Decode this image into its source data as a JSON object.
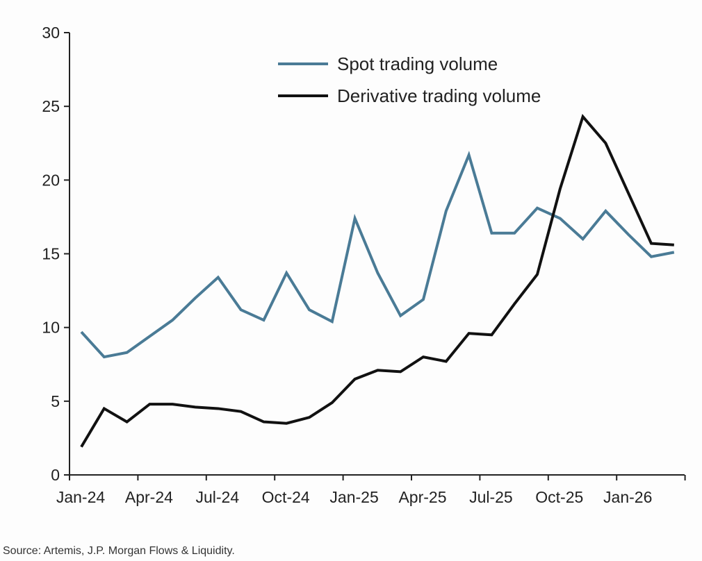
{
  "chart_data": {
    "type": "line",
    "title": "",
    "xlabel": "",
    "ylabel": "",
    "ylim": [
      0,
      30
    ],
    "yticks": [
      0,
      5,
      10,
      15,
      20,
      25,
      30
    ],
    "xtick_labels": [
      "Jan-24",
      "Apr-24",
      "Jul-24",
      "Oct-24",
      "Jan-25",
      "Apr-25",
      "Jul-25",
      "Oct-25",
      "Jan-26"
    ],
    "grid": false,
    "legend_position": "top-center",
    "x": [
      "Jan-24",
      "Feb-24",
      "Mar-24",
      "Apr-24",
      "May-24",
      "Jun-24",
      "Jul-24",
      "Aug-24",
      "Sep-24",
      "Oct-24",
      "Nov-24",
      "Dec-24",
      "Jan-25",
      "Feb-25",
      "Mar-25",
      "Apr-25",
      "May-25",
      "Jun-25",
      "Jul-25",
      "Aug-25",
      "Sep-25",
      "Oct-25",
      "Nov-25",
      "Dec-25",
      "Jan-26",
      "Feb-26",
      "Mar-26"
    ],
    "series": [
      {
        "name": "Spot trading volume",
        "color": "#4a7b96",
        "values": [
          9.7,
          8.0,
          8.3,
          9.4,
          10.5,
          12.0,
          13.4,
          11.2,
          10.5,
          13.7,
          11.2,
          10.4,
          17.4,
          13.7,
          10.8,
          11.9,
          17.9,
          21.7,
          16.4,
          16.4,
          18.1,
          17.4,
          16.0,
          17.9,
          16.3,
          14.8,
          15.1
        ]
      },
      {
        "name": "Derivative trading volume",
        "color": "#111111",
        "values": [
          1.9,
          4.5,
          3.6,
          4.8,
          4.8,
          4.6,
          4.5,
          4.3,
          3.6,
          3.5,
          3.9,
          4.9,
          6.5,
          7.1,
          7.0,
          8.0,
          7.7,
          9.6,
          9.5,
          11.6,
          13.6,
          19.4,
          24.3,
          22.5,
          19.1,
          15.7,
          15.6
        ]
      }
    ]
  },
  "source": "Source: Artemis, J.P. Morgan Flows & Liquidity."
}
